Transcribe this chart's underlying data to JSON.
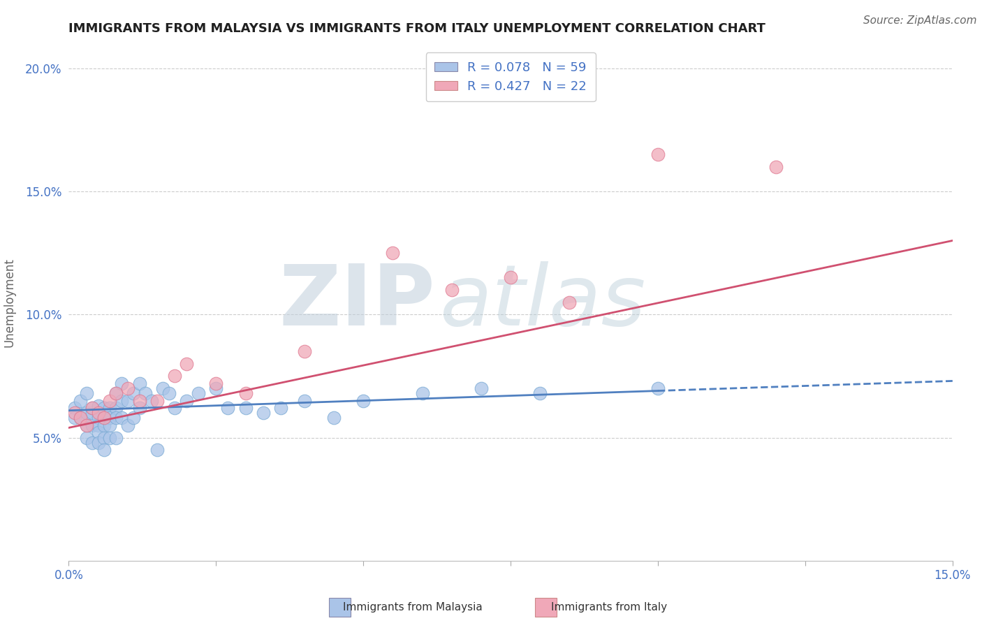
{
  "title": "IMMIGRANTS FROM MALAYSIA VS IMMIGRANTS FROM ITALY UNEMPLOYMENT CORRELATION CHART",
  "source": "Source: ZipAtlas.com",
  "ylabel": "Unemployment",
  "xlim": [
    0.0,
    0.15
  ],
  "ylim": [
    0.0,
    0.21
  ],
  "yticks": [
    0.05,
    0.1,
    0.15,
    0.2
  ],
  "ytick_labels": [
    "5.0%",
    "10.0%",
    "15.0%",
    "20.0%"
  ],
  "xtick_positions": [
    0.0,
    0.025,
    0.05,
    0.075,
    0.1,
    0.125,
    0.15
  ],
  "xtick_labels": [
    "0.0%",
    "",
    "",
    "",
    "",
    "",
    "15.0%"
  ],
  "malaysia_R": 0.078,
  "malaysia_N": 59,
  "italy_R": 0.427,
  "italy_N": 22,
  "malaysia_color": "#aac4e8",
  "malaysia_edge": "#7aaad4",
  "italy_color": "#f0a8b8",
  "italy_edge": "#e07890",
  "malaysia_line_color": "#5080c0",
  "italy_line_color": "#d05070",
  "background_color": "#ffffff",
  "grid_color": "#cccccc",
  "title_color": "#202020",
  "axis_label_color": "#4472c4",
  "watermark_zip_color": "#c8d8e8",
  "watermark_atlas_color": "#b0c8d8",
  "malaysia_x": [
    0.001,
    0.001,
    0.002,
    0.002,
    0.003,
    0.003,
    0.003,
    0.003,
    0.004,
    0.004,
    0.004,
    0.004,
    0.005,
    0.005,
    0.005,
    0.005,
    0.005,
    0.006,
    0.006,
    0.006,
    0.006,
    0.006,
    0.007,
    0.007,
    0.007,
    0.007,
    0.008,
    0.008,
    0.008,
    0.008,
    0.009,
    0.009,
    0.009,
    0.01,
    0.01,
    0.011,
    0.011,
    0.012,
    0.012,
    0.013,
    0.014,
    0.015,
    0.016,
    0.017,
    0.018,
    0.02,
    0.022,
    0.025,
    0.027,
    0.03,
    0.033,
    0.036,
    0.04,
    0.045,
    0.05,
    0.06,
    0.07,
    0.08,
    0.1
  ],
  "malaysia_y": [
    0.062,
    0.058,
    0.065,
    0.058,
    0.068,
    0.055,
    0.06,
    0.05,
    0.06,
    0.055,
    0.062,
    0.048,
    0.063,
    0.058,
    0.055,
    0.052,
    0.048,
    0.062,
    0.058,
    0.055,
    0.05,
    0.045,
    0.062,
    0.058,
    0.055,
    0.05,
    0.068,
    0.062,
    0.058,
    0.05,
    0.072,
    0.065,
    0.058,
    0.065,
    0.055,
    0.068,
    0.058,
    0.072,
    0.062,
    0.068,
    0.065,
    0.045,
    0.07,
    0.068,
    0.062,
    0.065,
    0.068,
    0.07,
    0.062,
    0.062,
    0.06,
    0.062,
    0.065,
    0.058,
    0.065,
    0.068,
    0.07,
    0.068,
    0.07
  ],
  "italy_x": [
    0.001,
    0.002,
    0.003,
    0.004,
    0.005,
    0.006,
    0.007,
    0.008,
    0.01,
    0.012,
    0.015,
    0.018,
    0.02,
    0.025,
    0.03,
    0.04,
    0.055,
    0.065,
    0.075,
    0.085,
    0.1,
    0.12
  ],
  "italy_y": [
    0.06,
    0.058,
    0.055,
    0.062,
    0.06,
    0.058,
    0.065,
    0.068,
    0.07,
    0.065,
    0.065,
    0.075,
    0.08,
    0.072,
    0.068,
    0.085,
    0.125,
    0.11,
    0.115,
    0.105,
    0.165,
    0.16
  ],
  "malaysia_trend_x0": 0.0,
  "malaysia_trend_x1": 0.15,
  "malaysia_trend_y0": 0.061,
  "malaysia_trend_y1": 0.073,
  "italy_trend_x0": 0.0,
  "italy_trend_x1": 0.15,
  "italy_trend_y0": 0.054,
  "italy_trend_y1": 0.13
}
